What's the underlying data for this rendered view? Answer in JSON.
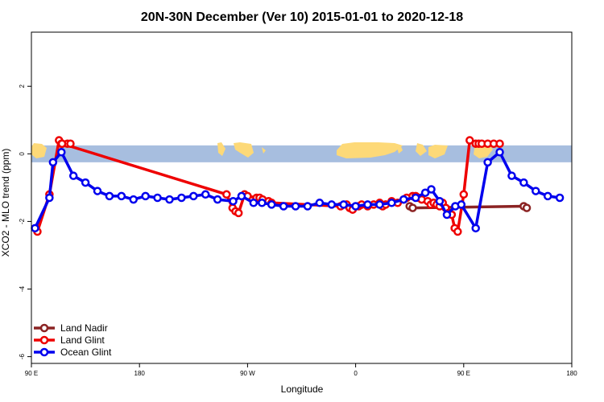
{
  "chart_data": {
    "type": "line",
    "title": "20N-30N December (Ver 10)   2015-01-01 to 2020-12-18",
    "xlabel": "Longitude",
    "ylabel": "XCO2 - MLO trend (ppm)",
    "xlim": [
      90,
      540
    ],
    "ylim": [
      -6.2,
      3.6
    ],
    "x_ticks": [
      {
        "value": 90,
        "label": "90 E"
      },
      {
        "value": 180,
        "label": "180"
      },
      {
        "value": 270,
        "label": "90 W"
      },
      {
        "value": 360,
        "label": "0"
      },
      {
        "value": 450,
        "label": "90 E"
      },
      {
        "value": 540,
        "label": "180"
      }
    ],
    "y_ticks": [
      {
        "value": -6,
        "label": "-6"
      },
      {
        "value": -4,
        "label": "-4"
      },
      {
        "value": -2,
        "label": "-2"
      },
      {
        "value": 0,
        "label": "0"
      },
      {
        "value": 2,
        "label": "2"
      }
    ],
    "map_band": {
      "ymin": -0.25,
      "ymax": 0.25,
      "ocean_color": "#a7bedf",
      "land_color": "#fdd978"
    },
    "grid": false,
    "legend_position": "bottom-left",
    "series": [
      {
        "name": "Land Nadir",
        "color": "#8b2323",
        "x": [
          405,
          407.5,
          500,
          502.5
        ],
        "y": [
          -1.55,
          -1.6,
          -1.55,
          -1.6
        ]
      },
      {
        "name": "Land Glint",
        "color": "#ee0000",
        "x": [
          95,
          105,
          113,
          115,
          120,
          122.5,
          115.5,
          115.5,
          252.5,
          257.5,
          260,
          262.5,
          267.5,
          270,
          277.5,
          280,
          282.5,
          287.5,
          290,
          347.5,
          352.5,
          355,
          357.5,
          362.5,
          365,
          370,
          375,
          380,
          382.5,
          385,
          390,
          395,
          400,
          402.5,
          407.5,
          410,
          412.5,
          415,
          420,
          422.5,
          425,
          427.5,
          430,
          432.5,
          435,
          437.5,
          440,
          442.5,
          445,
          450,
          455,
          460,
          462.5,
          465,
          470,
          475,
          480
        ],
        "y": [
          -2.3,
          -1.2,
          0.4,
          0.3,
          0.3,
          0.3,
          0.3,
          0.3,
          -1.2,
          -1.6,
          -1.7,
          -1.75,
          -1.2,
          -1.25,
          -1.3,
          -1.3,
          -1.35,
          -1.4,
          -1.45,
          -1.55,
          -1.5,
          -1.6,
          -1.65,
          -1.55,
          -1.5,
          -1.55,
          -1.5,
          -1.45,
          -1.55,
          -1.5,
          -1.4,
          -1.45,
          -1.35,
          -1.3,
          -1.25,
          -1.25,
          -1.3,
          -1.35,
          -1.4,
          -1.5,
          -1.45,
          -1.5,
          -1.55,
          -1.45,
          -1.6,
          -1.75,
          -1.8,
          -2.2,
          -2.3,
          -1.2,
          0.4,
          0.3,
          0.3,
          0.3,
          0.3,
          0.3,
          0.3
        ]
      },
      {
        "name": "Ocean Glint",
        "color": "#0000ee",
        "x": [
          93,
          105,
          108,
          115,
          125,
          135,
          145,
          155,
          165,
          175,
          185,
          195,
          205,
          215,
          225,
          235,
          245,
          258,
          265,
          275,
          282,
          290,
          300,
          310,
          320,
          330,
          340,
          350,
          360,
          370,
          380,
          390,
          400,
          410,
          418,
          423,
          430,
          436,
          443,
          448,
          460,
          470,
          480,
          490,
          500,
          510,
          520,
          530
        ],
        "y": [
          -2.2,
          -1.3,
          -0.25,
          0.05,
          -0.65,
          -0.85,
          -1.1,
          -1.25,
          -1.25,
          -1.35,
          -1.25,
          -1.3,
          -1.35,
          -1.3,
          -1.25,
          -1.2,
          -1.35,
          -1.4,
          -1.25,
          -1.45,
          -1.45,
          -1.5,
          -1.55,
          -1.55,
          -1.55,
          -1.45,
          -1.5,
          -1.5,
          -1.55,
          -1.5,
          -1.5,
          -1.45,
          -1.35,
          -1.3,
          -1.15,
          -1.05,
          -1.4,
          -1.8,
          -1.55,
          -1.5,
          -2.2,
          -0.25,
          0.05,
          -0.65,
          -0.85,
          -1.1,
          -1.25,
          -1.3
        ]
      }
    ]
  }
}
